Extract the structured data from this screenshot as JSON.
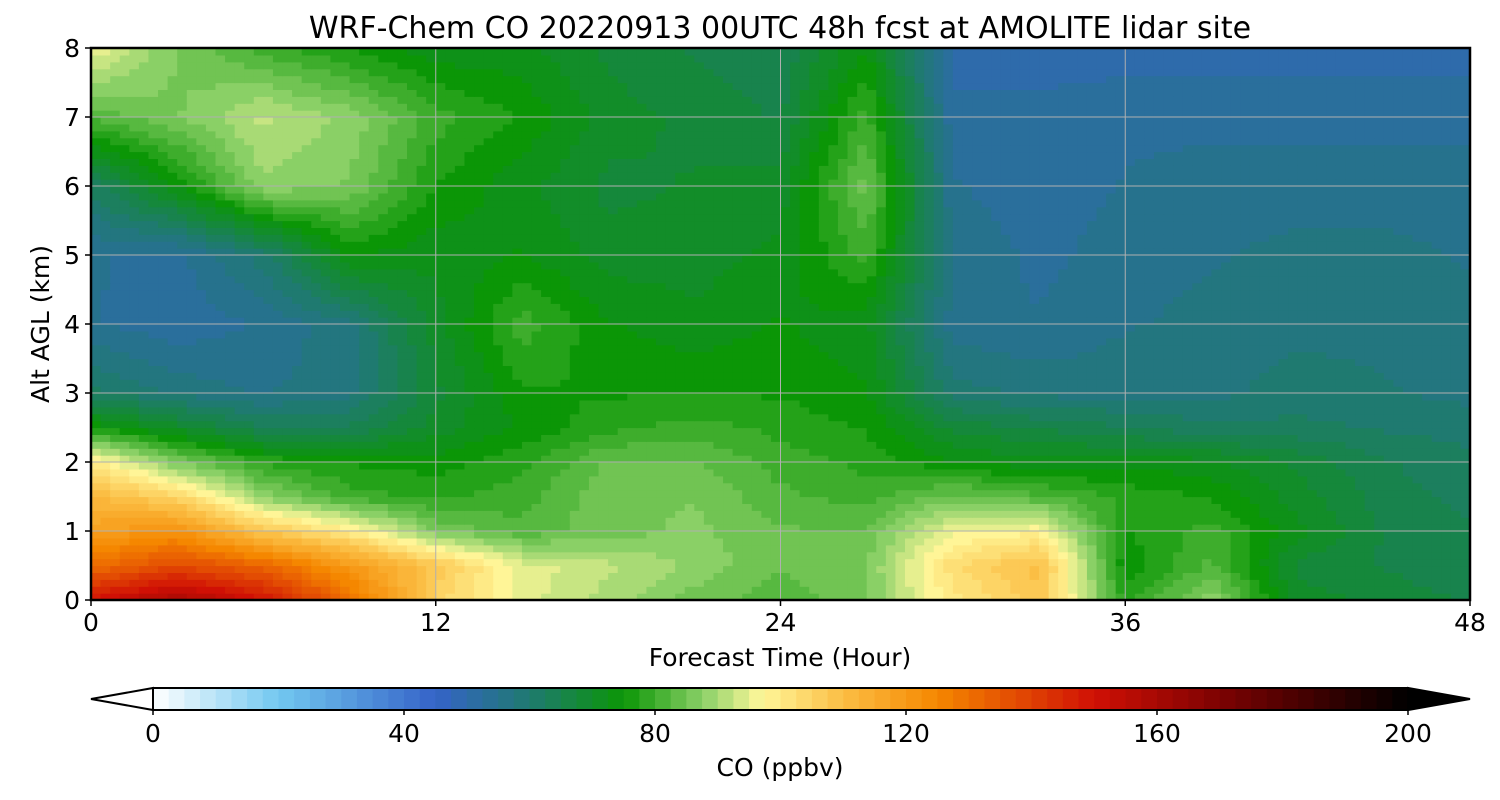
{
  "chart_data": {
    "type": "heatmap",
    "title": "WRF-Chem CO  20220913 00UTC 48h fcst at AMOLITE lidar site",
    "xlabel": "Forecast Time (Hour)",
    "ylabel": "Alt AGL (km)",
    "xlim": [
      0,
      48
    ],
    "ylim": [
      0,
      8
    ],
    "xticks": [
      "0",
      "12",
      "24",
      "36",
      "48"
    ],
    "yticks": [
      "0",
      "1",
      "2",
      "3",
      "4",
      "5",
      "6",
      "7",
      "8"
    ],
    "grid": true,
    "colorbar": {
      "label": "CO  (ppbv)",
      "range": [
        0,
        200
      ],
      "ticks": [
        "0",
        "40",
        "80",
        "120",
        "160",
        "200"
      ],
      "extend": "both",
      "stops": [
        {
          "v": 0,
          "c": "#ffffff"
        },
        {
          "v": 20,
          "c": "#72c8f0"
        },
        {
          "v": 45,
          "c": "#3563c8"
        },
        {
          "v": 60,
          "c": "#1f7a70"
        },
        {
          "v": 75,
          "c": "#0b9606"
        },
        {
          "v": 88,
          "c": "#8fd26a"
        },
        {
          "v": 97,
          "c": "#fff79a"
        },
        {
          "v": 110,
          "c": "#fbbe44"
        },
        {
          "v": 125,
          "c": "#f58700"
        },
        {
          "v": 150,
          "c": "#d01005"
        },
        {
          "v": 170,
          "c": "#7d0202"
        },
        {
          "v": 200,
          "c": "#000000"
        }
      ]
    },
    "x_hours": [
      0,
      3,
      6,
      9,
      12,
      15,
      18,
      21,
      24,
      27,
      30,
      33,
      36,
      39,
      42,
      45,
      48
    ],
    "z_km": [
      0,
      0.5,
      1,
      1.5,
      2,
      2.5,
      3,
      4,
      5,
      6,
      7,
      8
    ],
    "values_ppbv": [
      [
        150,
        160,
        150,
        130,
        105,
        95,
        90,
        85,
        82,
        86,
        100,
        108,
        78,
        88,
        70,
        68,
        66
      ],
      [
        130,
        138,
        132,
        120,
        108,
        95,
        92,
        88,
        84,
        86,
        103,
        110,
        74,
        82,
        68,
        66,
        64
      ],
      [
        118,
        122,
        108,
        100,
        86,
        82,
        85,
        87,
        84,
        84,
        96,
        98,
        76,
        80,
        72,
        66,
        64
      ],
      [
        112,
        105,
        88,
        80,
        78,
        80,
        86,
        86,
        82,
        80,
        85,
        82,
        78,
        76,
        70,
        65,
        63
      ],
      [
        100,
        86,
        78,
        76,
        75,
        78,
        84,
        84,
        80,
        78,
        74,
        72,
        73,
        72,
        68,
        64,
        62
      ],
      [
        76,
        70,
        64,
        64,
        70,
        74,
        78,
        80,
        78,
        76,
        68,
        66,
        64,
        62,
        62,
        61,
        60
      ],
      [
        62,
        58,
        56,
        58,
        68,
        76,
        76,
        76,
        76,
        74,
        60,
        58,
        58,
        58,
        60,
        59,
        58
      ],
      [
        54,
        52,
        54,
        58,
        70,
        80,
        74,
        72,
        74,
        72,
        55,
        54,
        56,
        57,
        58,
        58,
        57
      ],
      [
        54,
        53,
        60,
        74,
        72,
        74,
        70,
        70,
        72,
        80,
        56,
        53,
        55,
        56,
        57,
        57,
        56
      ],
      [
        62,
        74,
        88,
        86,
        76,
        72,
        68,
        69,
        70,
        85,
        54,
        52,
        54,
        55,
        55,
        55,
        55
      ],
      [
        82,
        86,
        92,
        88,
        80,
        76,
        70,
        68,
        66,
        80,
        52,
        52,
        53,
        53,
        53,
        53,
        53
      ],
      [
        96,
        86,
        80,
        76,
        72,
        72,
        68,
        66,
        64,
        74,
        50,
        50,
        50,
        50,
        50,
        50,
        50
      ]
    ]
  }
}
